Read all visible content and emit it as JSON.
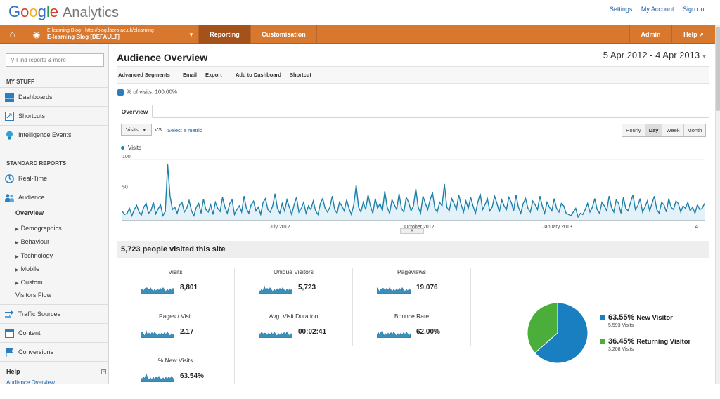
{
  "app": {
    "brand": "Google",
    "product": "Analytics"
  },
  "top_links": [
    "Settings",
    "My Account",
    "Sign out"
  ],
  "nav": {
    "account_line1": "E-learning Blog - http://blog.lboro.ac.uk/elearning",
    "account_line2": "E-learning Blog [DEFAULT]",
    "tabs": [
      "Reporting",
      "Customisation",
      "Admin",
      "Help"
    ],
    "active_tab": "Reporting"
  },
  "sidebar": {
    "search_placeholder": "Find reports & more",
    "my_stuff_heading": "MY STUFF",
    "my_stuff": [
      "Dashboards",
      "Shortcuts",
      "Intelligence Events"
    ],
    "standard_reports_heading": "STANDARD REPORTS",
    "realtime": "Real-Time",
    "audience": "Audience",
    "audience_sub": [
      "Overview",
      "Demographics",
      "Behaviour",
      "Technology",
      "Mobile",
      "Custom",
      "Visitors Flow"
    ],
    "other_reports": [
      "Traffic Sources",
      "Content",
      "Conversions"
    ],
    "help_heading": "Help",
    "help_link": "Audience Overview"
  },
  "main": {
    "title": "Audience Overview",
    "date_range": "5 Apr 2012 - 4 Apr 2013",
    "toolbar": [
      "Advanced Segments",
      "Email",
      "Export",
      "Add to Dashboard",
      "Shortcut"
    ],
    "segment": "% of visits: 100.00%",
    "tab": "Overview",
    "metric_select": "Visits",
    "vs": "VS.",
    "select_metric": "Select a metric",
    "granularity": [
      "Hourly",
      "Day",
      "Week",
      "Month"
    ],
    "granularity_selected": "Day",
    "visited_headline": "5,723 people visited this site"
  },
  "chart_data": {
    "type": "area",
    "title": "",
    "xlabel": "",
    "ylabel": "",
    "series": [
      {
        "name": "Visits",
        "color": "#1e7fa8"
      }
    ],
    "ylim": [
      0,
      100
    ],
    "y_ticks": [
      100,
      50
    ],
    "x_tick_labels": [
      "July 2012",
      "October 2012",
      "January 2013",
      "A..."
    ],
    "values": [
      15,
      10,
      12,
      20,
      8,
      18,
      25,
      14,
      9,
      22,
      28,
      12,
      16,
      30,
      11,
      19,
      26,
      8,
      15,
      92,
      40,
      18,
      22,
      12,
      25,
      30,
      14,
      20,
      33,
      16,
      8,
      22,
      28,
      12,
      35,
      18,
      14,
      26,
      10,
      30,
      20,
      15,
      38,
      22,
      12,
      28,
      34,
      10,
      18,
      24,
      14,
      40,
      20,
      12,
      26,
      32,
      16,
      22,
      10,
      30,
      36,
      18,
      14,
      24,
      44,
      20,
      12,
      28,
      16,
      34,
      22,
      10,
      26,
      38,
      14,
      20,
      30,
      12,
      24,
      18,
      32,
      16,
      10,
      28,
      36,
      20,
      14,
      22,
      40,
      18,
      12,
      30,
      24,
      16,
      34,
      20,
      10,
      26,
      58,
      22,
      14,
      30,
      18,
      42,
      24,
      12,
      36,
      20,
      28,
      16,
      48,
      22,
      12,
      34,
      26,
      18,
      44,
      20,
      14,
      38,
      30,
      16,
      24,
      52,
      22,
      12,
      40,
      28,
      18,
      34,
      46,
      20,
      14,
      30,
      24,
      60,
      22,
      16,
      36,
      28,
      18,
      42,
      26,
      14,
      32,
      20,
      38,
      24,
      12,
      30,
      44,
      18,
      26,
      36,
      16,
      22,
      40,
      28,
      14,
      34,
      24,
      18,
      38,
      30,
      16,
      42,
      22,
      12,
      28,
      36,
      20,
      14,
      32,
      26,
      18,
      40,
      24,
      12,
      30,
      22,
      16,
      36,
      20,
      14,
      28,
      24,
      12,
      10,
      8,
      14,
      20,
      6,
      12,
      10,
      18,
      28,
      14,
      22,
      36,
      18,
      12,
      30,
      24,
      16,
      40,
      22,
      14,
      34,
      28,
      12,
      38,
      20,
      16,
      30,
      42,
      18,
      24,
      36,
      14,
      22,
      32,
      16,
      28,
      40,
      18,
      12,
      30,
      26,
      14,
      36,
      22,
      18,
      32,
      28,
      14,
      24,
      20,
      30,
      16,
      22,
      12,
      26,
      18,
      20,
      28
    ],
    "grid": false
  },
  "metrics": [
    {
      "label": "Visits",
      "value": "8,801"
    },
    {
      "label": "Unique Visitors",
      "value": "5,723"
    },
    {
      "label": "Pageviews",
      "value": "19,076"
    },
    {
      "label": "Pages / Visit",
      "value": "2.17"
    },
    {
      "label": "Avg. Visit Duration",
      "value": "00:02:41"
    },
    {
      "label": "Bounce Rate",
      "value": "62.00%"
    },
    {
      "label": "% New Visits",
      "value": "63.54%"
    }
  ],
  "visitor_pie": {
    "slices": [
      {
        "name": "New Visitor",
        "percent": "63.55%",
        "fraction": 0.6355,
        "count": "5,593 Visits",
        "color": "#1a7fc1"
      },
      {
        "name": "Returning Visitor",
        "percent": "36.45%",
        "fraction": 0.3645,
        "count": "3,208 Visits",
        "color": "#4cae3a"
      }
    ]
  }
}
